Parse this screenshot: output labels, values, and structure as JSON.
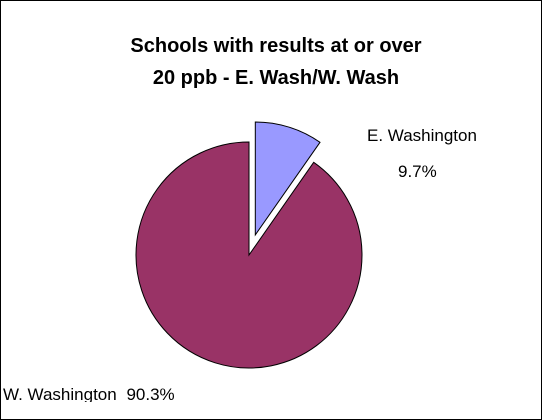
{
  "chart_data": {
    "type": "pie",
    "title_lines": [
      "Schools with results at or over",
      "20 ppb - E. Wash/W. Wash"
    ],
    "slices": [
      {
        "name": "E. Washington",
        "value": 9.7,
        "value_label": "9.7%",
        "color": "#9999ff",
        "exploded": true
      },
      {
        "name": "W. Washington",
        "value": 90.3,
        "value_label": "90.3%",
        "color": "#993366",
        "exploded": false
      }
    ],
    "legend": "none"
  }
}
